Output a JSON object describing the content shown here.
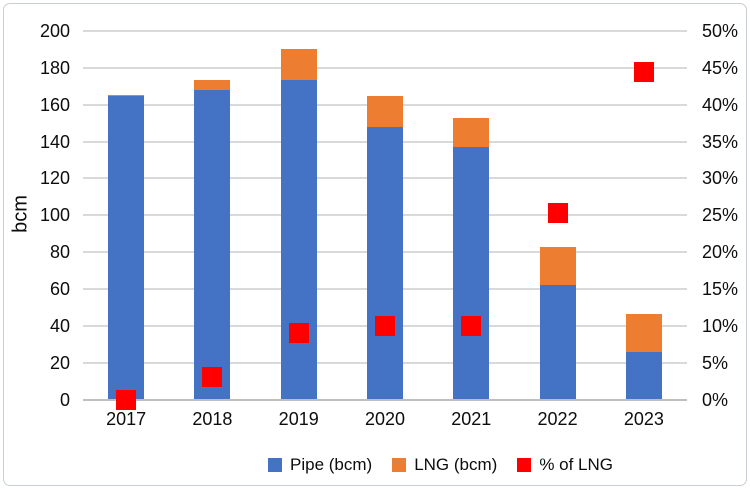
{
  "chart_data": {
    "type": "bar",
    "subtype": "stacked-column-with-scatter-overlay",
    "title": "",
    "categories": [
      "2017",
      "2018",
      "2019",
      "2020",
      "2021",
      "2022",
      "2023"
    ],
    "series": [
      {
        "name": "Pipe (bcm)",
        "type": "bar",
        "stack": "gas",
        "axis": "left",
        "color": "#4472C4",
        "values": [
          165,
          168,
          173.5,
          148,
          137,
          62,
          26
        ]
      },
      {
        "name": "LNG (bcm)",
        "type": "bar",
        "stack": "gas",
        "axis": "left",
        "color": "#ED7D31",
        "values": [
          0.5,
          5.5,
          17,
          16.5,
          16,
          21,
          20.5
        ]
      },
      {
        "name": "% of LNG",
        "type": "scatter",
        "marker": "square",
        "axis": "right",
        "color": "#FF0000",
        "values": [
          0,
          3,
          9,
          10,
          10,
          25.3,
          44.5
        ]
      }
    ],
    "left_axis": {
      "label": "bcm",
      "min": 0,
      "max": 200,
      "step": 20,
      "tick_labels": [
        "0",
        "20",
        "40",
        "60",
        "80",
        "100",
        "120",
        "140",
        "160",
        "180",
        "200"
      ]
    },
    "right_axis": {
      "label": "",
      "min": 0,
      "max": 50,
      "step": 5,
      "unit": "%",
      "tick_labels": [
        "0%",
        "5%",
        "10%",
        "15%",
        "20%",
        "25%",
        "30%",
        "35%",
        "40%",
        "45%",
        "50%"
      ]
    },
    "legend": {
      "position": "bottom",
      "entries": [
        {
          "label": "Pipe (bcm)",
          "color": "#4472C4",
          "shape": "square"
        },
        {
          "label": "LNG (bcm)",
          "color": "#ED7D31",
          "shape": "square"
        },
        {
          "label": "% of LNG",
          "color": "#FF0000",
          "shape": "square"
        }
      ]
    },
    "grid": true,
    "gridline_color": "#D9D9D9",
    "background_color": "#FFFFFF",
    "border_color": "#C9CED3"
  }
}
